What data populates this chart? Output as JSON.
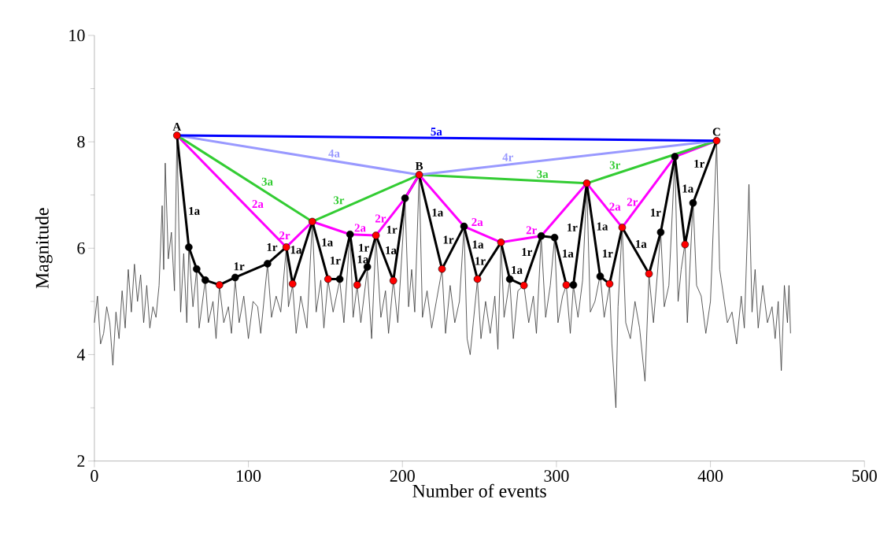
{
  "chart_data": {
    "type": "line",
    "xlabel": "Number of events",
    "ylabel": "Magnitude",
    "xlim": [
      0,
      500
    ],
    "ylim": [
      2,
      10
    ],
    "xticks": [
      0,
      100,
      200,
      300,
      400,
      500
    ],
    "yticks": [
      2,
      {
        "value": 3,
        "label": null
      },
      4,
      {
        "value": 5,
        "label": null
      },
      6,
      {
        "value": 7,
        "label": null
      },
      8,
      {
        "value": 9,
        "label": null
      },
      10
    ],
    "series": [
      {
        "color": "#333333",
        "x": [
          0,
          2,
          4,
          6,
          8,
          10,
          12,
          14,
          16,
          18,
          20,
          22,
          24,
          26,
          28,
          30,
          32,
          34,
          36,
          38,
          40,
          42,
          44,
          45,
          46,
          48,
          50,
          52,
          53.6,
          56,
          58,
          60,
          61.3,
          64,
          66.4,
          68,
          72,
          74,
          77,
          79,
          81.2,
          84,
          87,
          89,
          91.4,
          94,
          97,
          100,
          103,
          106,
          108,
          112.4,
          115,
          118,
          121,
          124.6,
          126,
          128.7,
          131,
          134,
          138,
          141.5,
          144,
          147,
          149,
          151.7,
          155,
          159.3,
          162,
          166,
          168,
          170.6,
          173,
          177.2,
          180,
          182.8,
          186,
          189,
          191,
          194.1,
          197,
          201.7,
          204,
          206,
          208,
          210.9,
          213,
          216,
          219,
          222,
          225.7,
          228,
          231,
          234,
          237,
          240,
          242,
          244,
          246,
          248.7,
          251,
          254,
          257,
          260,
          262,
          264,
          266,
          269.7,
          272,
          275,
          278.9,
          282,
          285,
          287,
          290.1,
          293,
          296,
          298.8,
          301,
          304,
          306.4,
          309,
          311,
          314,
          317,
          319.7,
          322,
          325,
          328.4,
          331,
          334.5,
          336,
          338.6,
          340,
          342.7,
          345,
          348,
          351,
          354,
          357.5,
          360.1,
          363,
          367.7,
          370,
          373,
          376.9,
          379,
          381,
          383.5,
          385,
          388.7,
          391,
          394,
          397,
          400,
          404,
          406,
          408,
          411,
          414,
          417,
          420,
          422,
          425,
          427,
          429,
          431,
          434,
          437,
          440,
          442,
          444,
          446,
          448,
          450,
          451,
          452
        ],
        "values": [
          4.6,
          5.1,
          4.2,
          4.4,
          4.9,
          4.6,
          3.8,
          4.8,
          4.3,
          5.2,
          4.5,
          5.6,
          4.8,
          5.7,
          5.0,
          5.5,
          4.6,
          5.3,
          4.5,
          4.9,
          4.7,
          5.3,
          6.8,
          5.6,
          7.6,
          5.8,
          6.3,
          5.2,
          8.1,
          4.8,
          5.9,
          4.6,
          6.0,
          4.9,
          5.6,
          4.5,
          5.4,
          4.6,
          5.0,
          4.3,
          5.3,
          4.6,
          4.9,
          4.4,
          5.4,
          4.6,
          5.1,
          4.3,
          5.0,
          4.9,
          4.4,
          5.7,
          4.7,
          5.1,
          4.8,
          6.0,
          4.9,
          5.3,
          4.4,
          5.1,
          4.5,
          6.5,
          4.8,
          5.4,
          4.5,
          5.4,
          4.8,
          5.4,
          4.6,
          6.3,
          4.7,
          5.3,
          4.6,
          5.6,
          4.3,
          6.2,
          4.7,
          5.2,
          4.4,
          5.4,
          4.6,
          6.9,
          4.9,
          5.6,
          4.8,
          7.4,
          4.7,
          5.2,
          4.5,
          5.0,
          5.6,
          4.4,
          5.3,
          4.6,
          5.0,
          6.4,
          4.3,
          4.0,
          4.6,
          5.4,
          4.3,
          5.0,
          4.4,
          5.1,
          4.1,
          6.1,
          4.7,
          5.4,
          4.3,
          5.2,
          5.3,
          4.6,
          5.1,
          4.4,
          6.2,
          4.7,
          5.3,
          6.2,
          4.6,
          5.1,
          5.3,
          4.4,
          5.3,
          4.7,
          5.4,
          7.2,
          4.8,
          5.0,
          5.5,
          4.7,
          5.3,
          4.2,
          3.0,
          4.9,
          6.4,
          4.6,
          4.3,
          5.0,
          4.5,
          3.5,
          5.5,
          4.6,
          6.3,
          4.9,
          5.3,
          7.7,
          5.0,
          5.6,
          6.1,
          4.6,
          6.9,
          5.3,
          5.1,
          4.4,
          5.0,
          8.0,
          5.6,
          5.2,
          4.6,
          4.8,
          4.2,
          5.1,
          4.5,
          7.2,
          4.8,
          5.6,
          4.5,
          5.3,
          4.6,
          4.9,
          4.3,
          5.0,
          3.7,
          5.3,
          4.6,
          5.3,
          4.4
        ]
      },
      {
        "color": "#000000",
        "marker": "circle",
        "x": [
          53.6,
          61.3,
          66.4,
          72.0,
          81.2,
          91.4,
          112.4,
          124.6,
          128.7,
          141.5,
          151.7,
          159.3,
          166.0,
          170.6,
          177.2,
          182.8,
          194.1,
          201.7,
          210.9,
          225.7,
          240.0,
          248.7,
          264.0,
          269.7,
          278.9,
          290.1,
          298.8,
          306.4,
          311.0,
          319.7,
          328.4,
          334.5,
          342.7,
          360.1,
          367.7,
          376.9,
          383.5,
          388.7,
          404.0
        ],
        "values": [
          8.12,
          6.02,
          5.61,
          5.4,
          5.31,
          5.45,
          5.71,
          6.02,
          5.33,
          6.5,
          5.42,
          5.42,
          6.26,
          5.31,
          5.65,
          6.24,
          5.39,
          6.94,
          7.38,
          5.61,
          6.41,
          5.42,
          6.11,
          5.42,
          5.3,
          6.23,
          6.2,
          5.31,
          5.31,
          7.22,
          5.47,
          5.33,
          6.39,
          5.52,
          6.3,
          7.72,
          6.07,
          6.85,
          8.02
        ],
        "colors": [
          "#ff0000",
          "#000000",
          "#000000",
          "#000000",
          "#ff0000",
          "#000000",
          "#000000",
          "#ff0000",
          "#ff0000",
          "#ff0000",
          "#ff0000",
          "#000000",
          "#000000",
          "#ff0000",
          "#000000",
          "#ff0000",
          "#ff0000",
          "#000000",
          "#ff0000",
          "#ff0000",
          "#000000",
          "#ff0000",
          "#ff0000",
          "#000000",
          "#ff0000",
          "#000000",
          "#000000",
          "#ff0000",
          "#000000",
          "#ff0000",
          "#000000",
          "#ff0000",
          "#ff0000",
          "#ff0000",
          "#000000",
          "#000000",
          "#ff0000",
          "#000000",
          "#ff0000"
        ]
      },
      {
        "color": "#ff00ff",
        "x": [
          53.6,
          124.6,
          141.5,
          166.0,
          182.8,
          201.7,
          210.9,
          240.0,
          264.0,
          290.1,
          319.7,
          342.7,
          376.9,
          404.0
        ],
        "values": [
          8.12,
          6.02,
          6.5,
          6.26,
          6.24,
          6.94,
          7.38,
          6.41,
          6.11,
          6.23,
          7.22,
          6.39,
          7.72,
          8.02
        ]
      },
      {
        "color": "#33cc33",
        "x": [
          53.6,
          141.5,
          210.9,
          319.7,
          404.0
        ],
        "values": [
          8.12,
          6.5,
          7.38,
          7.22,
          8.02
        ]
      },
      {
        "color": "#9999ff",
        "x": [
          53.6,
          210.9,
          404.0
        ],
        "values": [
          8.12,
          7.38,
          8.02
        ]
      },
      {
        "color": "#0000ff",
        "x": [
          53.6,
          404.0
        ],
        "values": [
          8.12,
          8.02
        ]
      }
    ],
    "annotations": [
      {
        "text": "A",
        "x": 53.6,
        "y": 8.12
      },
      {
        "text": "B",
        "x": 210.9,
        "y": 7.38
      },
      {
        "text": "C",
        "x": 404.0,
        "y": 8.02
      },
      {
        "text": "5a",
        "x": 217.1,
        "y": 8.07
      },
      {
        "text": "4a",
        "x": 150.7,
        "y": 7.66
      },
      {
        "text": "4r",
        "x": 273.2,
        "y": 7.59
      },
      {
        "text": "3a",
        "x": 107.3,
        "y": 7.13
      },
      {
        "text": "3r",
        "x": 163.4,
        "y": 6.78
      },
      {
        "text": "3a",
        "x": 286.0,
        "y": 7.27
      },
      {
        "text": "3r",
        "x": 342.7,
        "y": 7.44
      },
      {
        "text": "2a",
        "x": 101.1,
        "y": 6.71
      },
      {
        "text": "2r",
        "x": 128.2,
        "y": 6.12
      },
      {
        "text": "2a",
        "x": 167.6,
        "y": 6.26
      },
      {
        "text": "2r",
        "x": 191.5,
        "y": 6.56
      },
      {
        "text": "2a",
        "x": 243.6,
        "y": 6.37
      },
      {
        "text": "2r",
        "x": 288.5,
        "y": 6.22
      },
      {
        "text": "2a",
        "x": 332.0,
        "y": 6.78
      },
      {
        "text": "2r",
        "x": 355.0,
        "y": 6.87
      },
      {
        "text": "1a",
        "x": 58.8,
        "y": 6.7
      },
      {
        "text": "1r",
        "x": 98.6,
        "y": 5.54
      },
      {
        "text": "1r",
        "x": 120.0,
        "y": 5.9
      },
      {
        "text": "1a",
        "x": 124.9,
        "y": 5.97
      },
      {
        "text": "1a",
        "x": 145.2,
        "y": 6.11
      },
      {
        "text": "1r",
        "x": 162.1,
        "y": 5.77
      },
      {
        "text": "1r",
        "x": 180.6,
        "y": 6.01
      },
      {
        "text": "1a",
        "x": 168.3,
        "y": 5.79
      },
      {
        "text": "1r",
        "x": 198.8,
        "y": 6.35
      },
      {
        "text": "1a",
        "x": 186.5,
        "y": 5.96
      },
      {
        "text": "1a",
        "x": 216.8,
        "y": 6.67
      },
      {
        "text": "1r",
        "x": 235.5,
        "y": 6.16
      },
      {
        "text": "1a",
        "x": 243.0,
        "y": 6.07
      },
      {
        "text": "1r",
        "x": 256.2,
        "y": 5.76
      },
      {
        "text": "1a",
        "x": 268.3,
        "y": 5.59
      },
      {
        "text": "1r",
        "x": 286.5,
        "y": 5.93
      },
      {
        "text": "1a",
        "x": 301.4,
        "y": 5.9
      },
      {
        "text": "1r",
        "x": 315.9,
        "y": 6.39
      },
      {
        "text": "1a",
        "x": 323.7,
        "y": 6.41
      },
      {
        "text": "1r",
        "x": 338.9,
        "y": 5.9
      },
      {
        "text": "1a",
        "x": 348.9,
        "y": 6.08
      },
      {
        "text": "1r",
        "x": 370.1,
        "y": 6.67
      },
      {
        "text": "1a",
        "x": 379.3,
        "y": 7.12
      },
      {
        "text": "1r",
        "x": 398.4,
        "y": 7.59
      }
    ]
  }
}
